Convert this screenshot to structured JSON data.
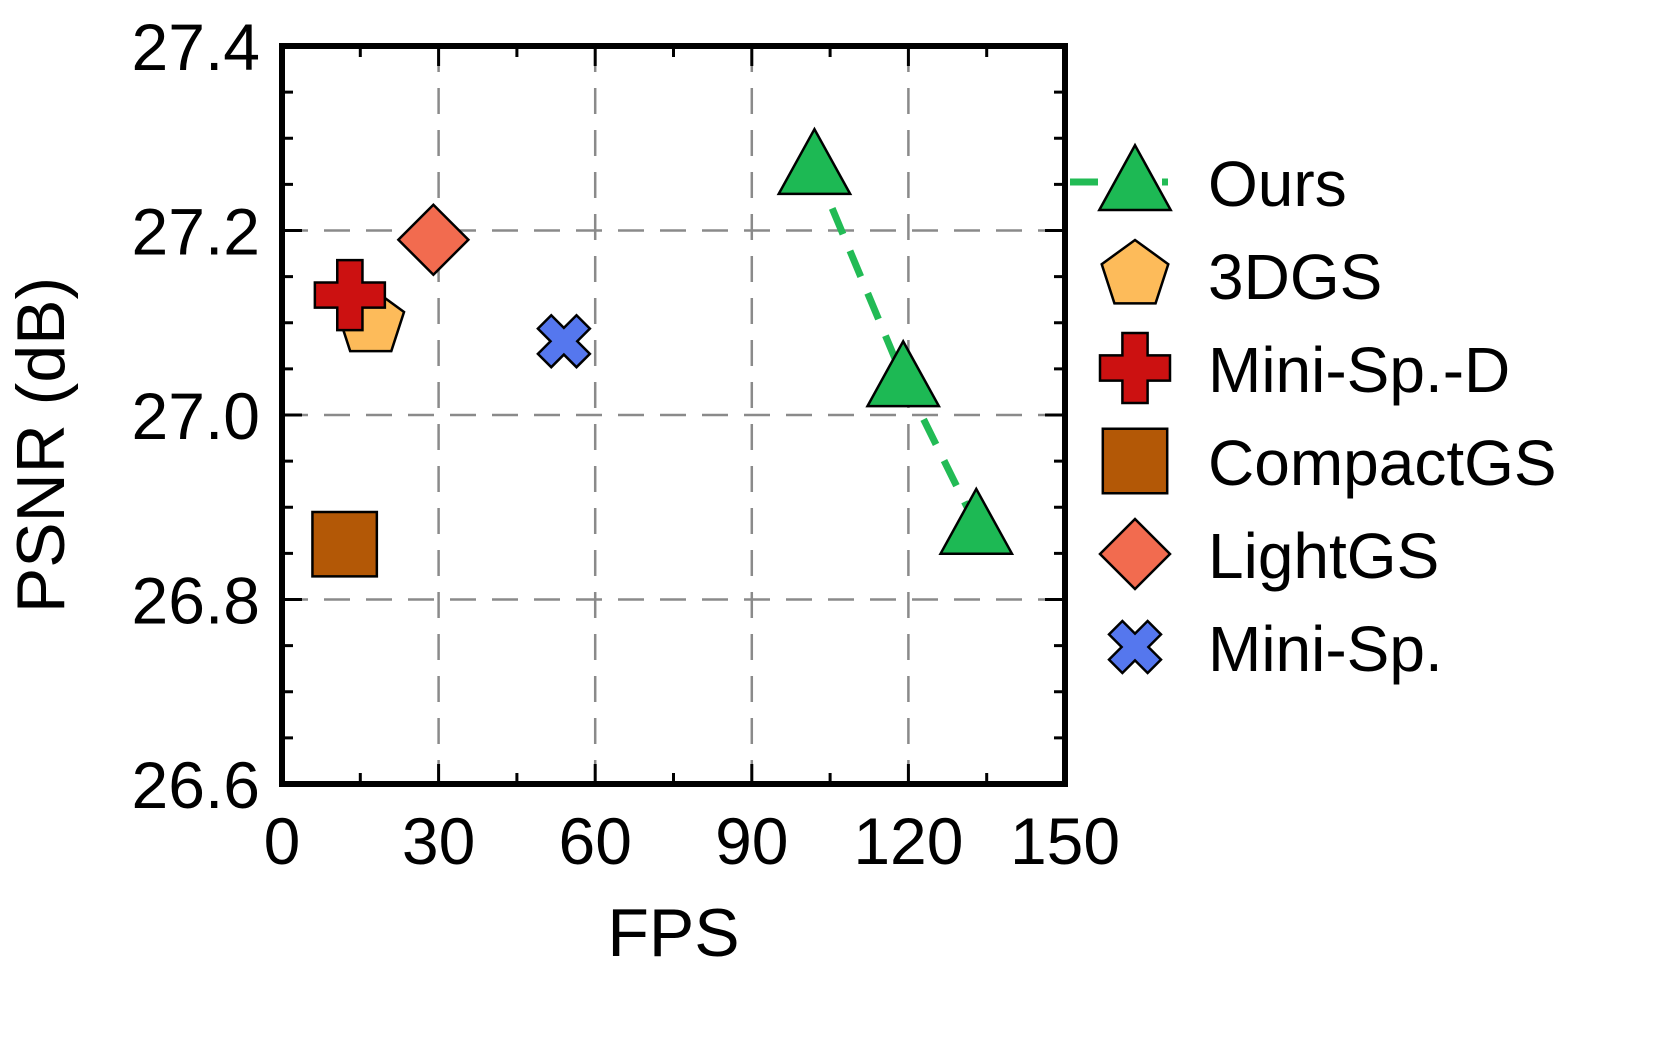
{
  "chart_data": {
    "type": "scatter",
    "title": "",
    "xlabel": "FPS",
    "ylabel": "PSNR (dB)",
    "xlim": [
      0,
      150
    ],
    "ylim": [
      26.6,
      27.4
    ],
    "xticks": [
      0,
      30,
      60,
      90,
      120,
      150
    ],
    "yticks": [
      26.6,
      26.8,
      27.0,
      27.2,
      27.4
    ],
    "xtick_labels": [
      "0",
      "30",
      "60",
      "90",
      "120",
      "150"
    ],
    "ytick_labels": [
      "26.6",
      "26.8",
      "27.0",
      "27.2",
      "27.4"
    ],
    "grid": true,
    "legend_position": "right",
    "series": [
      {
        "name": "Ours",
        "marker": "triangle",
        "color": "#1db954",
        "line": "dashed",
        "line_color": "#22bb55",
        "points": [
          [
            102,
            27.27
          ],
          [
            119,
            27.04
          ],
          [
            133,
            26.88
          ]
        ]
      },
      {
        "name": "3DGS",
        "marker": "pentagon",
        "color": "#fdbb5a",
        "points": [
          [
            17,
            27.1
          ]
        ]
      },
      {
        "name": "Mini-Sp.-D",
        "marker": "plus",
        "color": "#cc1111",
        "points": [
          [
            13,
            27.13
          ]
        ]
      },
      {
        "name": "CompactGS",
        "marker": "square",
        "color": "#b35806",
        "points": [
          [
            12,
            26.86
          ]
        ]
      },
      {
        "name": "LightGS",
        "marker": "diamond",
        "color": "#f26b4f",
        "points": [
          [
            29,
            27.19
          ]
        ]
      },
      {
        "name": "Mini-Sp.",
        "marker": "x",
        "color": "#5577ee",
        "points": [
          [
            54,
            27.08
          ]
        ]
      }
    ]
  }
}
